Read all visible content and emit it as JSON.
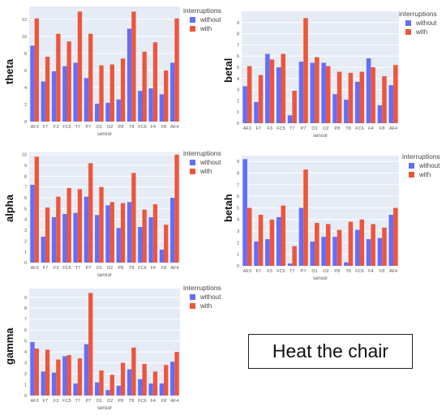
{
  "legend": {
    "title": "interruptions",
    "labels": [
      "without",
      "with"
    ]
  },
  "colors": {
    "without": "#636efa",
    "with": "#ef553b",
    "plot_bg": "#e5ecf6",
    "grid": "#ffffff"
  },
  "note": "Heat the chair",
  "chart_data": [
    {
      "type": "bar",
      "ylabel": "theta",
      "xlabel": "sensor",
      "categories": [
        "AF3",
        "F7",
        "F3",
        "FC5",
        "T7",
        "P7",
        "O1",
        "O2",
        "P8",
        "T8",
        "FC6",
        "F4",
        "F8",
        "AF4"
      ],
      "ylim": [
        0,
        13.5
      ],
      "yticks": [
        0,
        2,
        4,
        6,
        8,
        10,
        12
      ],
      "series": [
        {
          "name": "without",
          "values": [
            8.9,
            4.7,
            5.9,
            6.5,
            6.9,
            5.1,
            2.1,
            2.2,
            2.6,
            10.9,
            3.6,
            3.9,
            3.2,
            6.9
          ]
        },
        {
          "name": "with",
          "values": [
            12.1,
            7.6,
            10.3,
            9.4,
            12.9,
            10.3,
            6.6,
            6.7,
            7.4,
            12.9,
            8.2,
            9.3,
            6.0,
            12.1
          ]
        }
      ]
    },
    {
      "type": "bar",
      "ylabel": "betal",
      "xlabel": "sensor",
      "categories": [
        "AF3",
        "F7",
        "F3",
        "FC5",
        "T7",
        "P7",
        "O1",
        "O2",
        "P8",
        "T8",
        "FC6",
        "F4",
        "F8",
        "AF4"
      ],
      "ylim": [
        0,
        10
      ],
      "yticks": [
        0,
        1,
        2,
        3,
        4,
        5,
        6,
        7,
        8,
        9
      ],
      "series": [
        {
          "name": "without",
          "values": [
            3.3,
            1.9,
            6.2,
            5.0,
            0.7,
            5.5,
            5.4,
            5.4,
            2.6,
            2.1,
            3.7,
            5.8,
            1.6,
            3.4
          ]
        },
        {
          "name": "with",
          "values": [
            5.1,
            4.3,
            5.7,
            6.2,
            2.9,
            9.4,
            5.9,
            5.1,
            4.6,
            4.5,
            4.6,
            5.0,
            4.2,
            5.2
          ]
        }
      ]
    },
    {
      "type": "bar",
      "ylabel": "alpha",
      "xlabel": "sensor",
      "categories": [
        "AF3",
        "F7",
        "F3",
        "FC5",
        "T7",
        "P7",
        "O1",
        "O2",
        "P8",
        "T8",
        "FC6",
        "F4",
        "F8",
        "AF4"
      ],
      "ylim": [
        0,
        10.2
      ],
      "yticks": [
        0,
        1,
        2,
        3,
        4,
        5,
        6,
        7,
        8,
        9,
        10
      ],
      "series": [
        {
          "name": "without",
          "values": [
            7.2,
            2.4,
            4.2,
            4.5,
            4.6,
            6.1,
            4.4,
            5.3,
            3.2,
            5.6,
            3.3,
            4.2,
            1.2,
            6.0
          ]
        },
        {
          "name": "with",
          "values": [
            9.8,
            5.1,
            6.1,
            6.9,
            6.8,
            9.2,
            7.0,
            5.6,
            5.5,
            8.3,
            4.9,
            5.4,
            3.5,
            10.0
          ]
        }
      ]
    },
    {
      "type": "bar",
      "ylabel": "betah",
      "xlabel": "sensor",
      "categories": [
        "AF3",
        "F7",
        "F3",
        "FC5",
        "T7",
        "P7",
        "O1",
        "O2",
        "P8",
        "T8",
        "FC6",
        "F4",
        "F8",
        "AF4"
      ],
      "ylim": [
        0,
        9.5
      ],
      "yticks": [
        0,
        1,
        2,
        3,
        4,
        5,
        6,
        7,
        8,
        9
      ],
      "series": [
        {
          "name": "without",
          "values": [
            9.2,
            2.1,
            2.3,
            4.2,
            0.2,
            5.0,
            2.1,
            2.5,
            2.5,
            0.3,
            3.1,
            2.3,
            2.4,
            4.4
          ]
        },
        {
          "name": "with",
          "values": [
            5.0,
            4.4,
            4.0,
            5.2,
            1.7,
            8.3,
            3.7,
            3.6,
            3.1,
            3.8,
            4.0,
            3.6,
            3.3,
            5.0
          ]
        }
      ]
    },
    {
      "type": "bar",
      "ylabel": "gamma",
      "xlabel": "sensor",
      "categories": [
        "AF3",
        "F7",
        "F3",
        "FC5",
        "T7",
        "P7",
        "O1",
        "O2",
        "P8",
        "T8",
        "FC6",
        "F4",
        "F8",
        "AF4"
      ],
      "ylim": [
        0,
        9.8
      ],
      "yticks": [
        0,
        1,
        2,
        3,
        4,
        5,
        6,
        7,
        8,
        9
      ],
      "series": [
        {
          "name": "without",
          "values": [
            4.9,
            2.2,
            2.1,
            3.6,
            1.1,
            4.7,
            1.2,
            0.5,
            0.9,
            2.4,
            1.5,
            1.1,
            1.1,
            3.1
          ]
        },
        {
          "name": "with",
          "values": [
            4.3,
            4.2,
            3.3,
            3.7,
            3.4,
            9.4,
            2.3,
            1.9,
            3.0,
            4.4,
            2.9,
            2.2,
            2.8,
            4.0
          ]
        }
      ]
    }
  ]
}
